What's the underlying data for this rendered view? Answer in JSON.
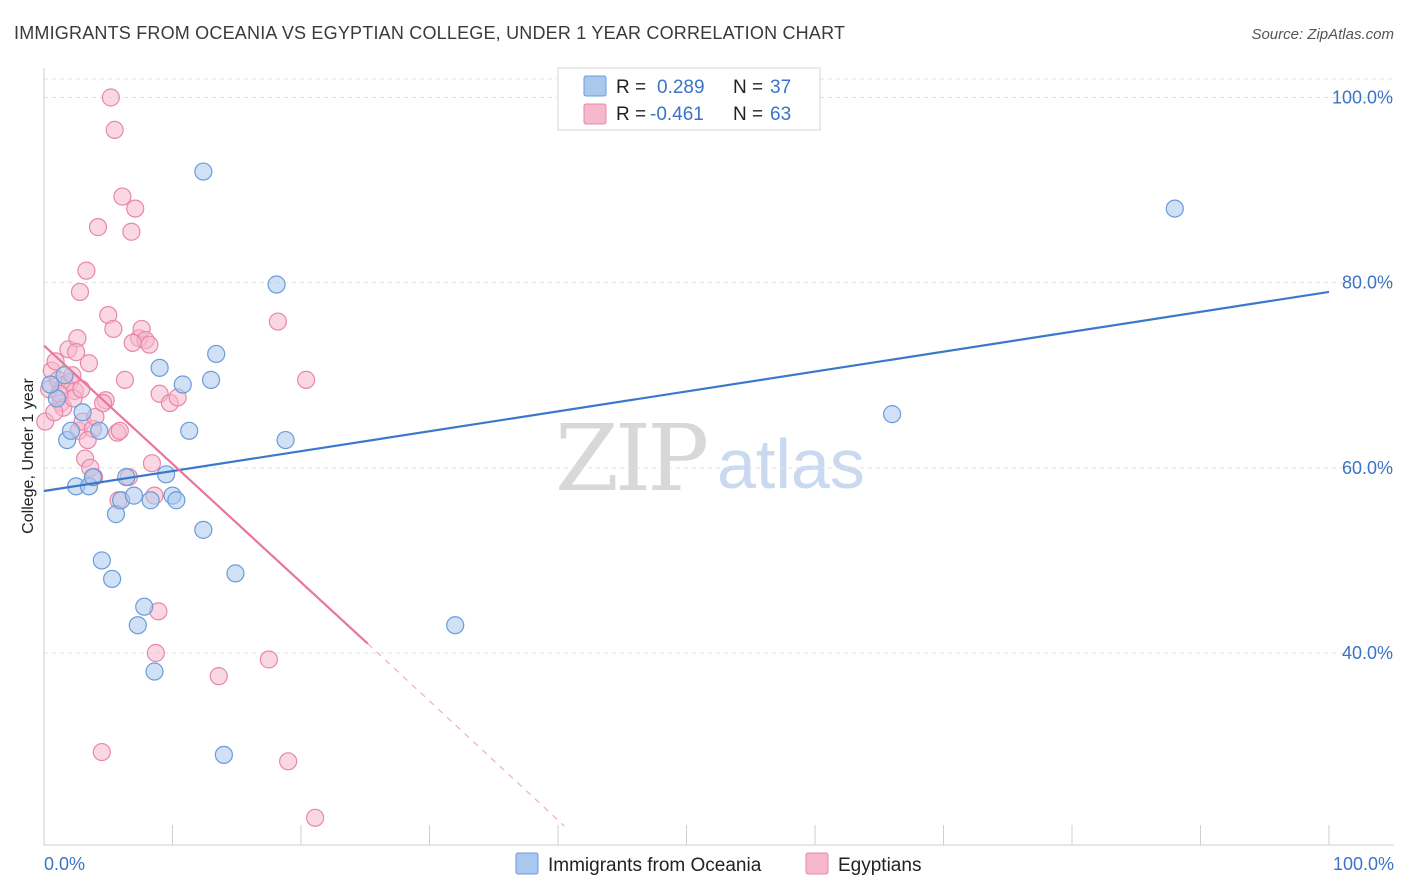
{
  "title": "IMMIGRANTS FROM OCEANIA VS EGYPTIAN COLLEGE, UNDER 1 YEAR CORRELATION CHART",
  "source": "Source: ZipAtlas.com",
  "watermark": {
    "zip": "ZIP",
    "atlas": "atlas"
  },
  "colors": {
    "blue_fill": "#a9c8ee",
    "blue_stroke": "#6b9bd8",
    "blue_line": "#3a78cc",
    "pink_fill": "#f5b8cc",
    "pink_stroke": "#e887a8",
    "pink_line": "#e8769b",
    "grid": "#e2e2e2",
    "axis_text": "#3b73c7"
  },
  "legend": {
    "rows": [
      {
        "r_label": "R =",
        "r_value": "0.289",
        "n_label": "N =",
        "n_value": "37"
      },
      {
        "r_label": "R =",
        "r_value": "-0.461",
        "n_label": "N =",
        "n_value": "63"
      }
    ]
  },
  "bottom_legend": [
    "Immigrants from Oceania",
    "Egyptians"
  ],
  "chart_data": {
    "type": "scatter",
    "title": "IMMIGRANTS FROM OCEANIA VS EGYPTIAN COLLEGE, UNDER 1 YEAR CORRELATION CHART",
    "xlabel": "",
    "ylabel": "College, Under 1 year",
    "xlim": [
      0,
      100
    ],
    "ylim": [
      20,
      102
    ],
    "x_tick_labels": [
      "0.0%",
      "100.0%"
    ],
    "y_ticks": [
      40,
      60,
      80,
      100
    ],
    "y_tick_labels": [
      "40.0%",
      "60.0%",
      "80.0%",
      "100.0%"
    ],
    "grid": true,
    "series": [
      {
        "name": "Immigrants from Oceania",
        "r": 0.289,
        "n": 37,
        "trend": {
          "x0": 0,
          "y0": 57.5,
          "x1": 100,
          "y1": 79.0,
          "dashed_beyond": null
        },
        "points": [
          [
            1.0,
            67.5
          ],
          [
            1.6,
            70.0
          ],
          [
            1.8,
            63.0
          ],
          [
            2.1,
            64.0
          ],
          [
            2.5,
            58.0
          ],
          [
            3.5,
            58.0
          ],
          [
            3.8,
            59.0
          ],
          [
            4.3,
            64.0
          ],
          [
            4.5,
            50.0
          ],
          [
            5.3,
            48.0
          ],
          [
            5.6,
            55.0
          ],
          [
            6.0,
            56.5
          ],
          [
            6.4,
            59.0
          ],
          [
            7.0,
            57.0
          ],
          [
            7.8,
            45.0
          ],
          [
            7.3,
            43.0
          ],
          [
            8.3,
            56.5
          ],
          [
            8.6,
            38.0
          ],
          [
            9.0,
            70.8
          ],
          [
            9.5,
            59.3
          ],
          [
            10.0,
            57.0
          ],
          [
            10.3,
            56.5
          ],
          [
            10.8,
            69.0
          ],
          [
            11.3,
            64.0
          ],
          [
            12.4,
            53.3
          ],
          [
            12.4,
            92.0
          ],
          [
            13.0,
            69.5
          ],
          [
            13.4,
            72.3
          ],
          [
            14.0,
            29.0
          ],
          [
            14.9,
            48.6
          ],
          [
            18.1,
            79.8
          ],
          [
            18.8,
            63.0
          ],
          [
            32.0,
            43.0
          ],
          [
            66.0,
            65.8
          ],
          [
            88.0,
            88.0
          ],
          [
            0.5,
            69.0
          ],
          [
            3.0,
            66.0
          ]
        ]
      },
      {
        "name": "Egyptians",
        "r": -0.461,
        "n": 63,
        "trend": {
          "x0": 0,
          "y0": 73.2,
          "x1": 25.2,
          "y1": 41.0,
          "dash_x1": 40.5,
          "dash_y1": 21.3
        },
        "points": [
          [
            0.1,
            65.0
          ],
          [
            0.4,
            68.5
          ],
          [
            0.6,
            70.5
          ],
          [
            0.9,
            71.5
          ],
          [
            1.1,
            69.5
          ],
          [
            1.3,
            67.0
          ],
          [
            1.6,
            69.0
          ],
          [
            1.9,
            72.8
          ],
          [
            2.0,
            69.3
          ],
          [
            2.2,
            70.0
          ],
          [
            2.4,
            68.3
          ],
          [
            2.6,
            74.0
          ],
          [
            2.7,
            64.0
          ],
          [
            2.8,
            79.0
          ],
          [
            3.0,
            65.0
          ],
          [
            3.2,
            61.0
          ],
          [
            3.3,
            81.3
          ],
          [
            3.5,
            71.3
          ],
          [
            3.6,
            60.0
          ],
          [
            3.8,
            64.2
          ],
          [
            3.9,
            59.0
          ],
          [
            4.2,
            86.0
          ],
          [
            4.5,
            29.3
          ],
          [
            4.8,
            67.3
          ],
          [
            5.0,
            76.5
          ],
          [
            5.2,
            100.0
          ],
          [
            5.4,
            75.0
          ],
          [
            5.5,
            96.5
          ],
          [
            5.7,
            63.8
          ],
          [
            5.8,
            56.5
          ],
          [
            6.1,
            89.3
          ],
          [
            6.3,
            69.5
          ],
          [
            6.6,
            59.0
          ],
          [
            6.8,
            85.5
          ],
          [
            7.1,
            88.0
          ],
          [
            7.4,
            74.0
          ],
          [
            7.6,
            75.0
          ],
          [
            7.9,
            73.8
          ],
          [
            8.2,
            73.3
          ],
          [
            8.4,
            60.5
          ],
          [
            8.6,
            57.0
          ],
          [
            8.9,
            44.5
          ],
          [
            8.7,
            40.0
          ],
          [
            9.0,
            68.0
          ],
          [
            9.8,
            67.0
          ],
          [
            10.4,
            67.6
          ],
          [
            13.6,
            37.5
          ],
          [
            17.5,
            39.3
          ],
          [
            18.2,
            75.8
          ],
          [
            19.0,
            28.3
          ],
          [
            20.4,
            69.5
          ],
          [
            21.1,
            22.2
          ],
          [
            1.5,
            66.5
          ],
          [
            2.3,
            67.5
          ],
          [
            4.0,
            65.5
          ],
          [
            2.5,
            72.5
          ],
          [
            6.9,
            73.5
          ],
          [
            5.9,
            64.0
          ],
          [
            3.4,
            63.0
          ],
          [
            1.2,
            68.0
          ],
          [
            4.6,
            67.0
          ],
          [
            0.8,
            66.0
          ],
          [
            2.9,
            68.5
          ]
        ]
      }
    ]
  }
}
